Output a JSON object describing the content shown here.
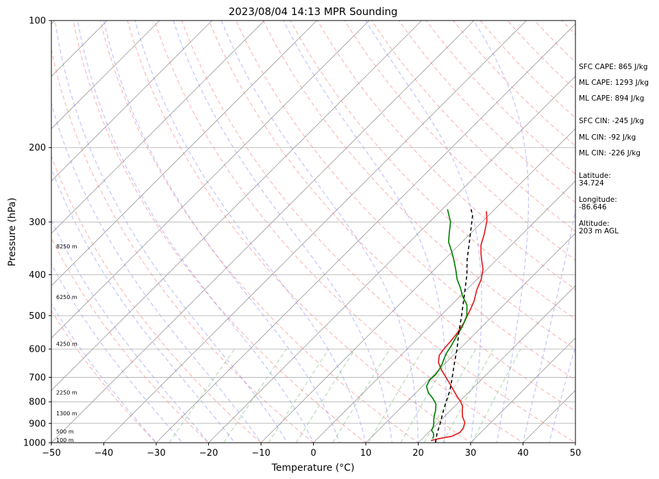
{
  "chart_data": {
    "type": "line",
    "title": "2023/08/04 14:13 MPR Sounding",
    "xlabel": "Temperature (°C)",
    "ylabel": "Pressure (hPa)",
    "xlim": [
      -50,
      50
    ],
    "ylim": [
      1000,
      100
    ],
    "yscale": "log",
    "grid": true,
    "x_ticks": [
      -50,
      -40,
      -30,
      -20,
      -10,
      0,
      10,
      20,
      30,
      40,
      50
    ],
    "y_ticks": [
      1000,
      900,
      800,
      700,
      600,
      500,
      400,
      300,
      200,
      100
    ],
    "height_labels": [
      {
        "text": "100 m",
        "pressure": 1000
      },
      {
        "text": "500 m",
        "pressure": 955
      },
      {
        "text": "1300 m",
        "pressure": 865
      },
      {
        "text": "2250 m",
        "pressure": 772
      },
      {
        "text": "4250 m",
        "pressure": 592
      },
      {
        "text": "6250 m",
        "pressure": 458
      },
      {
        "text": "8250 m",
        "pressure": 348
      }
    ],
    "series": [
      {
        "role": "temperature",
        "color": "#e41a1c",
        "points": [
          {
            "t": 22.0,
            "p": 988
          },
          {
            "t": 23.2,
            "p": 978
          },
          {
            "t": 25.2,
            "p": 965
          },
          {
            "t": 26.0,
            "p": 945
          },
          {
            "t": 25.8,
            "p": 922
          },
          {
            "t": 25.0,
            "p": 895
          },
          {
            "t": 23.5,
            "p": 868
          },
          {
            "t": 22.5,
            "p": 845
          },
          {
            "t": 21.5,
            "p": 820
          },
          {
            "t": 20.3,
            "p": 800
          },
          {
            "t": 18.8,
            "p": 780
          },
          {
            "t": 17.0,
            "p": 755
          },
          {
            "t": 15.0,
            "p": 728
          },
          {
            "t": 12.8,
            "p": 700
          },
          {
            "t": 10.5,
            "p": 672
          },
          {
            "t": 8.5,
            "p": 645
          },
          {
            "t": 7.3,
            "p": 620
          },
          {
            "t": 7.0,
            "p": 600
          },
          {
            "t": 6.8,
            "p": 575
          },
          {
            "t": 6.5,
            "p": 550
          },
          {
            "t": 5.8,
            "p": 520
          },
          {
            "t": 4.6,
            "p": 486
          },
          {
            "t": 3.6,
            "p": 462
          },
          {
            "t": 2.0,
            "p": 435
          },
          {
            "t": 0.8,
            "p": 410
          },
          {
            "t": -0.8,
            "p": 388
          },
          {
            "t": -2.5,
            "p": 372
          },
          {
            "t": -4.0,
            "p": 358
          },
          {
            "t": -5.8,
            "p": 340
          },
          {
            "t": -7.3,
            "p": 320
          },
          {
            "t": -9.3,
            "p": 298
          },
          {
            "t": -11.2,
            "p": 283
          }
        ]
      },
      {
        "role": "dewpoint",
        "color": "#008000",
        "points": [
          {
            "t": 22.0,
            "p": 978
          },
          {
            "t": 21.6,
            "p": 962
          },
          {
            "t": 21.0,
            "p": 948
          },
          {
            "t": 20.2,
            "p": 935
          },
          {
            "t": 19.8,
            "p": 916
          },
          {
            "t": 19.2,
            "p": 898
          },
          {
            "t": 18.5,
            "p": 880
          },
          {
            "t": 17.8,
            "p": 860
          },
          {
            "t": 17.2,
            "p": 840
          },
          {
            "t": 16.0,
            "p": 810
          },
          {
            "t": 14.3,
            "p": 785
          },
          {
            "t": 12.3,
            "p": 760
          },
          {
            "t": 10.8,
            "p": 735
          },
          {
            "t": 10.2,
            "p": 710
          },
          {
            "t": 10.3,
            "p": 690
          },
          {
            "t": 10.0,
            "p": 670
          },
          {
            "t": 9.5,
            "p": 650
          },
          {
            "t": 8.8,
            "p": 630
          },
          {
            "t": 8.2,
            "p": 610
          },
          {
            "t": 7.8,
            "p": 590
          },
          {
            "t": 7.0,
            "p": 560
          },
          {
            "t": 6.2,
            "p": 530
          },
          {
            "t": 5.0,
            "p": 500
          },
          {
            "t": 3.0,
            "p": 472
          },
          {
            "t": 0.5,
            "p": 450
          },
          {
            "t": -1.5,
            "p": 430
          },
          {
            "t": -3.8,
            "p": 410
          },
          {
            "t": -5.8,
            "p": 390
          },
          {
            "t": -8.0,
            "p": 370
          },
          {
            "t": -10.2,
            "p": 352
          },
          {
            "t": -12.5,
            "p": 335
          },
          {
            "t": -14.0,
            "p": 320
          },
          {
            "t": -16.0,
            "p": 300
          },
          {
            "t": -19.0,
            "p": 280
          }
        ]
      },
      {
        "role": "parcel",
        "color": "#000000",
        "dashed": true,
        "points": [
          {
            "t": 23.3,
            "p": 1000
          },
          {
            "t": 21.8,
            "p": 950
          },
          {
            "t": 20.5,
            "p": 900
          },
          {
            "t": 19.0,
            "p": 850
          },
          {
            "t": 17.5,
            "p": 800
          },
          {
            "t": 16.0,
            "p": 750
          },
          {
            "t": 14.0,
            "p": 700
          },
          {
            "t": 11.8,
            "p": 650
          },
          {
            "t": 9.5,
            "p": 600
          },
          {
            "t": 6.8,
            "p": 550
          },
          {
            "t": 4.0,
            "p": 500
          },
          {
            "t": 0.8,
            "p": 450
          },
          {
            "t": -2.8,
            "p": 400
          },
          {
            "t": -5.5,
            "p": 370
          },
          {
            "t": -9.0,
            "p": 330
          },
          {
            "t": -13.0,
            "p": 290
          },
          {
            "t": -14.5,
            "p": 280
          }
        ]
      }
    ]
  },
  "annotations": {
    "sfc_cape": "SFC CAPE: 865 J/kg",
    "ml_cape_1": "ML CAPE: 1293 J/kg",
    "ml_cape_2": "ML CAPE: 894 J/kg",
    "sfc_cin": "SFC CIN: -245 J/kg",
    "ml_cin_1": "ML CIN: -92 J/kg",
    "ml_cin_2": "ML CIN: -226 J/kg",
    "latitude": "Latitude:\n34.724",
    "longitude": "Longitude:\n-86.646",
    "altitude": "Altitude:\n203 m AGL"
  }
}
